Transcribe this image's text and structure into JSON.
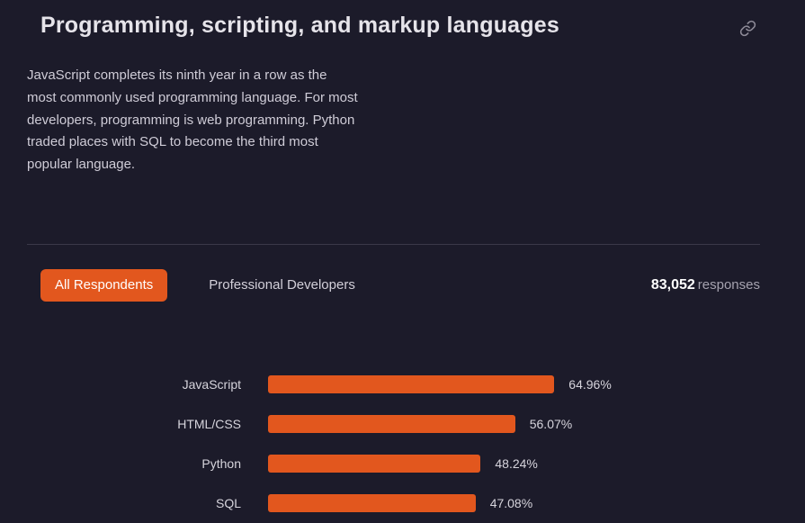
{
  "header": {
    "title": "Programming, scripting, and markup languages"
  },
  "intro": {
    "text": "JavaScript completes its ninth year in a row as the most commonly used programming language. For most developers, programming is web programming. Python traded places with SQL to become the third most popular language."
  },
  "tabs": [
    {
      "label": "All Respondents",
      "active": true
    },
    {
      "label": "Professional Developers",
      "active": false
    }
  ],
  "responses": {
    "count": "83,052",
    "label": "responses"
  },
  "icons": {
    "header_link": "link-icon"
  },
  "colors": {
    "accent": "#e2571e",
    "background": "#1c1b2a"
  },
  "chart_data": {
    "type": "bar",
    "orientation": "horizontal",
    "title": "Programming, scripting, and markup languages",
    "categories": [
      "JavaScript",
      "HTML/CSS",
      "Python",
      "SQL"
    ],
    "values": [
      64.96,
      56.07,
      48.24,
      47.08
    ],
    "value_labels": [
      "64.96%",
      "56.07%",
      "48.24%",
      "47.08%"
    ],
    "xlim": [
      0,
      100
    ],
    "bar_color": "#e2571e",
    "legend": false,
    "grid": false
  }
}
